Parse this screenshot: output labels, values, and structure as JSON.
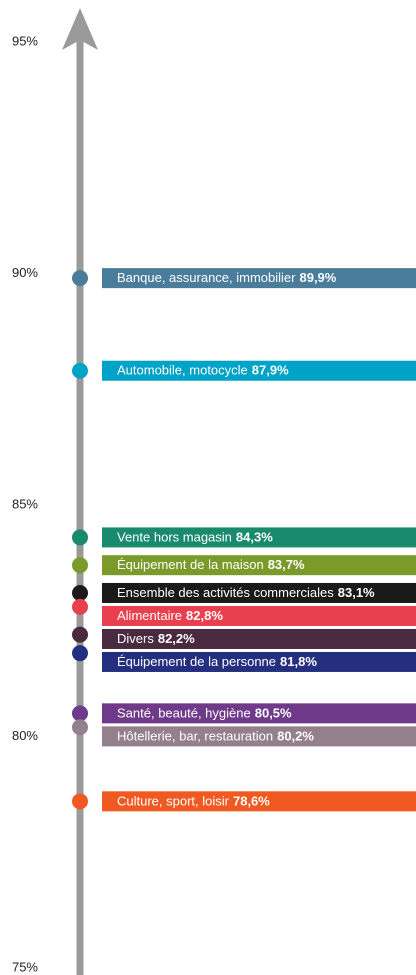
{
  "chart_data": {
    "type": "dot-scale",
    "categories": [
      "Banque, assurance, immobilier",
      "Automobile, motocycle",
      "Vente hors magasin",
      "Équipement de la maison",
      "Ensemble des activités commerciales",
      "Alimentaire",
      "Divers",
      "Équipement de la personne",
      "Santé, beauté, hygiène",
      "Hôtellerie, bar, restauration",
      "Culture, sport, loisir"
    ],
    "values": [
      89.9,
      87.9,
      84.3,
      83.7,
      83.1,
      82.8,
      82.2,
      81.8,
      80.5,
      80.2,
      78.6
    ],
    "value_labels": [
      "89,9%",
      "87,9%",
      "84,3%",
      "83,7%",
      "83,1%",
      "82,8%",
      "82,2%",
      "81,8%",
      "80,5%",
      "80,2%",
      "78,6%"
    ],
    "colors": [
      "#4a7c9b",
      "#00a3c8",
      "#1a8a6e",
      "#7a9a2a",
      "#1a1a1a",
      "#e8404e",
      "#4a2a40",
      "#24307f",
      "#6f3a8a",
      "#94808a",
      "#f05a22"
    ],
    "ylim": [
      75,
      95
    ],
    "yticks": [
      {
        "value": 75,
        "label": "75%"
      },
      {
        "value": 80,
        "label": "80%"
      },
      {
        "value": 85,
        "label": "85%"
      },
      {
        "value": 90,
        "label": "90%"
      },
      {
        "value": 95,
        "label": "95%"
      }
    ],
    "axis_color": "#9a9a9a"
  }
}
